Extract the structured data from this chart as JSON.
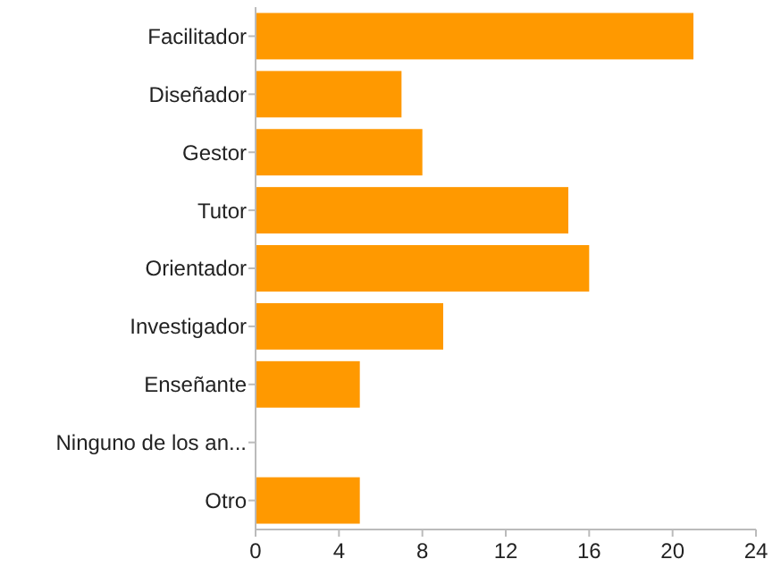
{
  "chart_data": {
    "type": "bar",
    "orientation": "horizontal",
    "categories": [
      "Facilitador",
      "Diseñador",
      "Gestor",
      "Tutor",
      "Orientador",
      "Investigador",
      "Enseñante",
      "Ninguno de los an...",
      "Otro"
    ],
    "values": [
      21,
      7,
      8,
      15,
      16,
      9,
      5,
      0,
      5
    ],
    "color": "#ff9900",
    "xlim": [
      0,
      24
    ],
    "xticks": [
      0,
      4,
      8,
      12,
      16,
      20,
      24
    ],
    "grid": false
  }
}
